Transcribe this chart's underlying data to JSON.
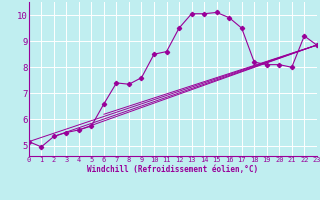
{
  "xlabel": "Windchill (Refroidissement éolien,°C)",
  "bg_color": "#c0eef0",
  "line_color": "#990099",
  "xlim": [
    0,
    23
  ],
  "ylim": [
    4.6,
    10.5
  ],
  "yticks": [
    5,
    6,
    7,
    8,
    9,
    10
  ],
  "xticks": [
    0,
    1,
    2,
    3,
    4,
    5,
    6,
    7,
    8,
    9,
    10,
    11,
    12,
    13,
    14,
    15,
    16,
    17,
    18,
    19,
    20,
    21,
    22,
    23
  ],
  "series": [
    [
      0,
      5.15
    ],
    [
      1,
      4.95
    ],
    [
      2,
      5.35
    ],
    [
      3,
      5.5
    ],
    [
      4,
      5.6
    ],
    [
      5,
      5.75
    ],
    [
      6,
      6.6
    ],
    [
      7,
      7.4
    ],
    [
      8,
      7.35
    ],
    [
      9,
      7.6
    ],
    [
      10,
      8.5
    ],
    [
      11,
      8.6
    ],
    [
      12,
      9.5
    ],
    [
      13,
      10.05
    ],
    [
      14,
      10.05
    ],
    [
      15,
      10.1
    ],
    [
      16,
      9.9
    ],
    [
      17,
      9.5
    ],
    [
      18,
      8.2
    ],
    [
      19,
      8.1
    ],
    [
      20,
      8.1
    ],
    [
      21,
      8.0
    ],
    [
      22,
      9.2
    ],
    [
      23,
      8.85
    ]
  ],
  "linear_lines": [
    {
      "x0": 0,
      "y0": 5.15,
      "x1": 23,
      "y1": 8.85
    },
    {
      "x0": 2,
      "y0": 5.35,
      "x1": 23,
      "y1": 8.85
    },
    {
      "x0": 4,
      "y0": 5.6,
      "x1": 23,
      "y1": 8.85
    },
    {
      "x0": 6,
      "y0": 6.2,
      "x1": 23,
      "y1": 8.85
    }
  ]
}
